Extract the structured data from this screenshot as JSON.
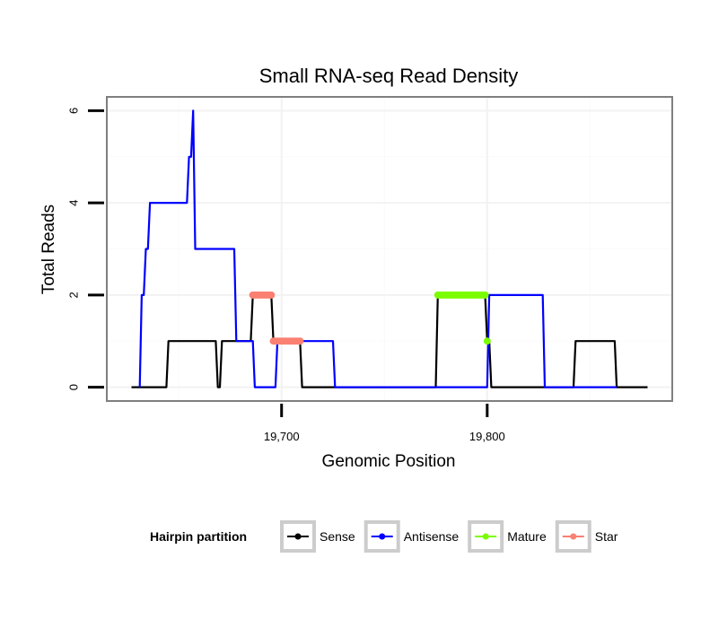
{
  "chart_data": {
    "type": "line",
    "title": "Small RNA-seq Read Density",
    "xlabel": "Genomic Position",
    "ylabel": "Total Reads",
    "xlim": [
      19615,
      19890
    ],
    "ylim": [
      -0.3,
      6.3
    ],
    "xticks": [
      {
        "value": 19700,
        "label": "19,700"
      },
      {
        "value": 19800,
        "label": "19,800"
      }
    ],
    "yticks": [
      {
        "value": 0,
        "label": "0"
      },
      {
        "value": 2,
        "label": "2"
      },
      {
        "value": 4,
        "label": "4"
      },
      {
        "value": 6,
        "label": "6"
      }
    ],
    "grid": true,
    "legend": {
      "title": "Hairpin partition",
      "position": "bottom",
      "entries": [
        {
          "name": "Sense",
          "color": "#000000"
        },
        {
          "name": "Antisense",
          "color": "#0000ff"
        },
        {
          "name": "Mature",
          "color": "#7cfc00"
        },
        {
          "name": "Star",
          "color": "#fa8072"
        }
      ]
    },
    "series": [
      {
        "name": "Sense",
        "color": "#000000",
        "style": "line",
        "x": [
          19627,
          19644,
          19645,
          19668,
          19669,
          19670,
          19671,
          19685,
          19686,
          19695,
          19696,
          19709,
          19710,
          19775,
          19776,
          19799,
          19800,
          19801,
          19802,
          19842,
          19843,
          19862,
          19863,
          19878
        ],
        "y": [
          0,
          0,
          1,
          1,
          0,
          0,
          1,
          1,
          2,
          2,
          1,
          1,
          0,
          0,
          2,
          2,
          1,
          1,
          0,
          0,
          1,
          1,
          0,
          0
        ]
      },
      {
        "name": "Antisense",
        "color": "#0000ff",
        "style": "line",
        "x": [
          19631,
          19632,
          19633,
          19634,
          19635,
          19636,
          19654,
          19655,
          19656,
          19657,
          19658,
          19677,
          19678,
          19686,
          19687,
          19697,
          19698,
          19711,
          19712,
          19725,
          19726,
          19800,
          19801,
          19827,
          19828,
          19863
        ],
        "y": [
          0,
          2,
          2,
          3,
          3,
          4,
          4,
          5,
          5,
          6,
          3,
          3,
          1,
          1,
          0,
          0,
          1,
          1,
          1,
          1,
          0,
          0,
          2,
          2,
          0,
          0
        ]
      },
      {
        "name": "Mature",
        "color": "#7cfc00",
        "style": "points",
        "x": [
          19776,
          19777,
          19778,
          19779,
          19780,
          19781,
          19782,
          19783,
          19784,
          19785,
          19786,
          19787,
          19788,
          19789,
          19790,
          19791,
          19792,
          19793,
          19794,
          19795,
          19796,
          19797,
          19798,
          19799,
          19800
        ],
        "y": [
          2,
          2,
          2,
          2,
          2,
          2,
          2,
          2,
          2,
          2,
          2,
          2,
          2,
          2,
          2,
          2,
          2,
          2,
          2,
          2,
          2,
          2,
          2,
          2,
          1
        ]
      },
      {
        "name": "Star",
        "color": "#fa8072",
        "style": "points",
        "x": [
          19686,
          19687,
          19688,
          19689,
          19690,
          19691,
          19692,
          19693,
          19694,
          19695,
          19696,
          19697,
          19698,
          19699,
          19700,
          19701,
          19702,
          19703,
          19704,
          19705,
          19706,
          19707,
          19708,
          19709
        ],
        "y": [
          2,
          2,
          2,
          2,
          2,
          2,
          2,
          2,
          2,
          2,
          1,
          1,
          1,
          1,
          1,
          1,
          1,
          1,
          1,
          1,
          1,
          1,
          1,
          1
        ]
      }
    ]
  }
}
